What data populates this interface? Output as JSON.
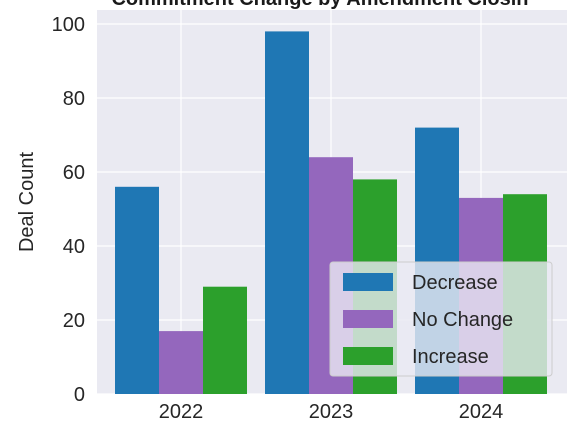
{
  "chart_data": {
    "type": "bar",
    "title": "Commitment Change by Amendment Closin",
    "xlabel": "",
    "ylabel": "Deal Count",
    "categories": [
      "2022",
      "2023",
      "2024"
    ],
    "series": [
      {
        "name": "Decrease",
        "values": [
          56,
          98,
          72
        ],
        "color": "#1f77b4"
      },
      {
        "name": "No Change",
        "values": [
          17,
          64,
          53
        ],
        "color": "#9467bd"
      },
      {
        "name": "Increase",
        "values": [
          29,
          58,
          54
        ],
        "color": "#2ca02c"
      }
    ],
    "ylim": [
      0,
      100
    ],
    "yticks": [
      0,
      20,
      40,
      60,
      80,
      100
    ],
    "grid": true,
    "legend_position": "lower-right",
    "background": "#eaeaf2"
  }
}
